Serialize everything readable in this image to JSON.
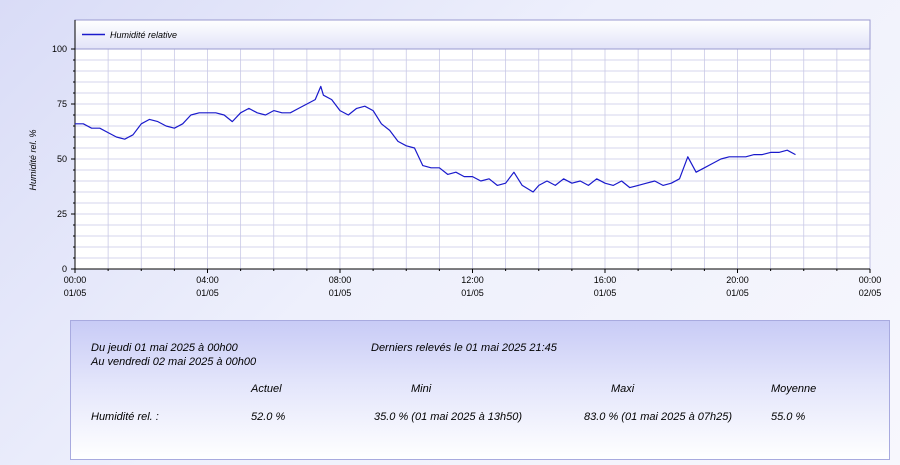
{
  "chart_data": {
    "type": "line",
    "legend": "Humidité relative",
    "legend_position": "top-left",
    "ylabel": "Humidité rel. %",
    "ylim": [
      0,
      100
    ],
    "y_ticks": [
      "0",
      "25",
      "50",
      "75",
      "100"
    ],
    "x_range_hours": [
      0,
      24
    ],
    "x_ticks": [
      {
        "time": "00:00",
        "date": "01/05"
      },
      {
        "time": "04:00",
        "date": "01/05"
      },
      {
        "time": "08:00",
        "date": "01/05"
      },
      {
        "time": "12:00",
        "date": "01/05"
      },
      {
        "time": "16:00",
        "date": "01/05"
      },
      {
        "time": "20:00",
        "date": "01/05"
      },
      {
        "time": "00:00",
        "date": "02/05"
      }
    ],
    "grid": true,
    "line_color": "#1a1acc",
    "x_hours": [
      0,
      0.25,
      0.5,
      0.75,
      1,
      1.25,
      1.5,
      1.75,
      2,
      2.25,
      2.5,
      2.75,
      3,
      3.25,
      3.5,
      3.75,
      4,
      4.25,
      4.5,
      4.75,
      5,
      5.25,
      5.5,
      5.75,
      6,
      6.25,
      6.5,
      6.75,
      7,
      7.25,
      7.42,
      7.5,
      7.75,
      8,
      8.25,
      8.5,
      8.75,
      9,
      9.25,
      9.5,
      9.75,
      10,
      10.25,
      10.5,
      10.75,
      11,
      11.25,
      11.5,
      11.75,
      12,
      12.25,
      12.5,
      12.75,
      13,
      13.25,
      13.5,
      13.83,
      14,
      14.25,
      14.5,
      14.75,
      15,
      15.25,
      15.5,
      15.75,
      16,
      16.25,
      16.5,
      16.75,
      17,
      17.25,
      17.5,
      17.75,
      18,
      18.25,
      18.5,
      18.75,
      19,
      19.25,
      19.5,
      19.75,
      20,
      20.25,
      20.5,
      20.75,
      21,
      21.25,
      21.5,
      21.75
    ],
    "values": [
      66,
      66,
      64,
      64,
      62,
      60,
      59,
      61,
      66,
      68,
      67,
      65,
      64,
      66,
      70,
      71,
      71,
      71,
      70,
      67,
      71,
      73,
      71,
      70,
      72,
      71,
      71,
      73,
      75,
      77,
      83,
      79,
      77,
      72,
      70,
      73,
      74,
      72,
      66,
      63,
      58,
      56,
      55,
      47,
      46,
      46,
      43,
      44,
      42,
      42,
      40,
      41,
      38,
      39,
      44,
      38,
      35,
      38,
      40,
      38,
      41,
      39,
      40,
      38,
      41,
      39,
      38,
      40,
      37,
      38,
      39,
      40,
      38,
      39,
      41,
      51,
      44,
      46,
      48,
      50,
      51,
      51,
      51,
      52,
      52,
      53,
      53,
      54,
      52
    ]
  },
  "stats": {
    "period_from": "Du jeudi 01 mai 2025 à 00h00",
    "period_to": "Au vendredi 02 mai 2025 à 00h00",
    "last_reading": "Derniers relevés le 01 mai 2025 21:45",
    "headers": [
      "Actuel",
      "Mini",
      "Maxi",
      "Moyenne"
    ],
    "row_label": "Humidité rel. :",
    "actuel": "52.0 %",
    "mini": "35.0 % (01 mai 2025 à 13h50)",
    "maxi": "83.0 % (01 mai 2025 à 07h25)",
    "moyenne": "55.0 %"
  }
}
